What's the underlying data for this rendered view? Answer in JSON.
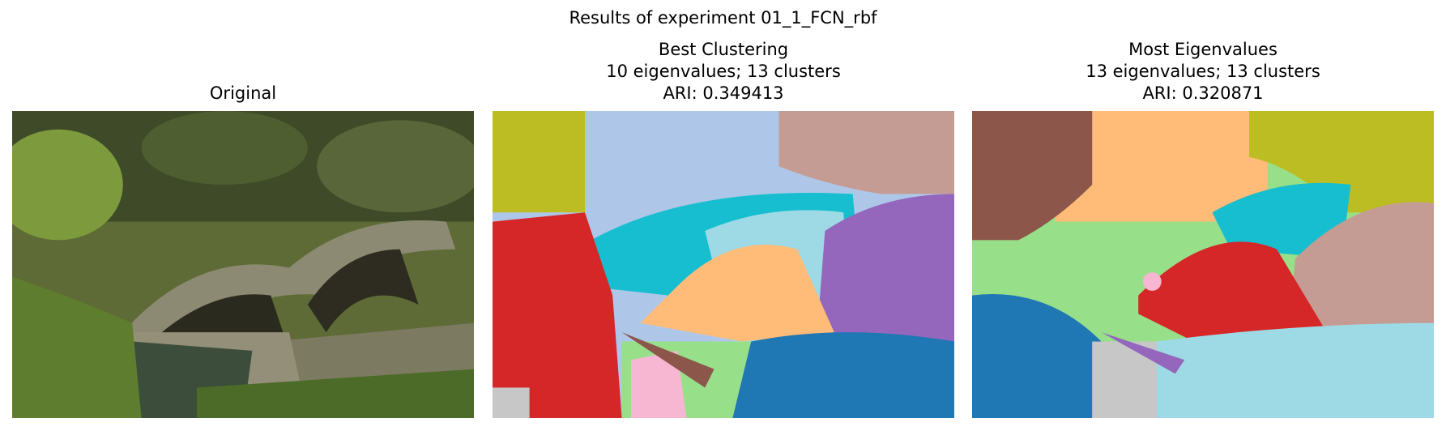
{
  "header": {
    "title": "Results of experiment 01_1_FCN_rbf"
  },
  "panels": [
    {
      "title_lines": [
        "Original"
      ]
    },
    {
      "title_lines": [
        "Best Clustering",
        "10 eigenvalues; 13 clusters",
        "ARI: 0.349413"
      ]
    },
    {
      "title_lines": [
        "Most Eigenvalues",
        "13 eigenvalues; 13 clusters",
        "ARI: 0.320871"
      ]
    }
  ]
}
